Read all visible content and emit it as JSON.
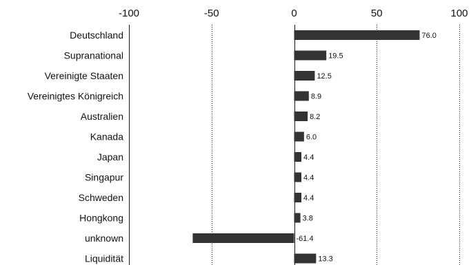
{
  "chart_data": {
    "type": "bar",
    "orientation": "horizontal",
    "title": "",
    "xlabel": "",
    "ylabel": "",
    "xlim": [
      -100,
      100
    ],
    "xticks": [
      "-100",
      "-50",
      "0",
      "50",
      "100"
    ],
    "grid": true,
    "legend": "none",
    "bar_color": "#333333",
    "categories": [
      "Deutschland",
      "Supranational",
      "Vereinigte Staaten",
      "Vereinigtes Königreich",
      "Australien",
      "Kanada",
      "Japan",
      "Singapur",
      "Schweden",
      "Hongkong",
      "unknown",
      "Liquidität"
    ],
    "values": [
      76.0,
      19.5,
      12.5,
      8.9,
      8.2,
      6.0,
      4.4,
      4.4,
      4.4,
      3.8,
      -61.4,
      13.3
    ],
    "value_labels": [
      "76.0",
      "19.5",
      "12.5",
      "8.9",
      "8.2",
      "6.0",
      "4.4",
      "4.4",
      "4.4",
      "3.8",
      "-61.4",
      "13.3"
    ]
  }
}
